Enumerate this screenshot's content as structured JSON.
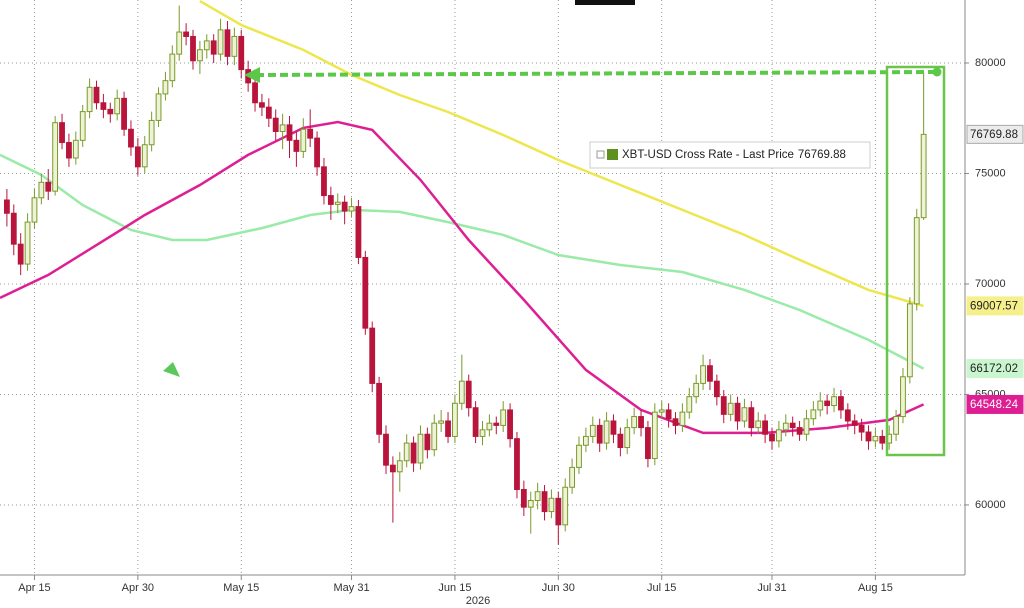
{
  "chart_data": {
    "type": "candlestick",
    "name": "XBT-USD Cross Rate - Last Price",
    "last_price": 76769.88,
    "x_year_label": "2026",
    "up_color": "#7a9a2a",
    "up_fill": "#eef3d6",
    "down_color": "#b8143c",
    "xlim": [
      "2026-04-10",
      "2026-08-28"
    ],
    "xticks": [
      {
        "value": "2026-04-15",
        "label": "Apr 15"
      },
      {
        "value": "2026-04-30",
        "label": "Apr 30"
      },
      {
        "value": "2026-05-15",
        "label": "May 15"
      },
      {
        "value": "2026-05-31",
        "label": "May 31"
      },
      {
        "value": "2026-06-15",
        "label": "Jun 15"
      },
      {
        "value": "2026-06-30",
        "label": "Jun 30"
      },
      {
        "value": "2026-07-15",
        "label": "Jul 15"
      },
      {
        "value": "2026-07-31",
        "label": "Jul 31"
      },
      {
        "value": "2026-08-15",
        "label": "Aug 15"
      }
    ],
    "ylim": [
      56830,
      82850
    ],
    "yticks": [
      60000,
      65000,
      70000,
      75000,
      80000
    ],
    "grid": true,
    "x": [
      "2026-04-11",
      "2026-04-12",
      "2026-04-13",
      "2026-04-14",
      "2026-04-15",
      "2026-04-16",
      "2026-04-17",
      "2026-04-18",
      "2026-04-19",
      "2026-04-20",
      "2026-04-21",
      "2026-04-22",
      "2026-04-23",
      "2026-04-24",
      "2026-04-25",
      "2026-04-26",
      "2026-04-27",
      "2026-04-28",
      "2026-04-29",
      "2026-04-30",
      "2026-05-01",
      "2026-05-02",
      "2026-05-03",
      "2026-05-04",
      "2026-05-05",
      "2026-05-06",
      "2026-05-07",
      "2026-05-08",
      "2026-05-09",
      "2026-05-10",
      "2026-05-11",
      "2026-05-12",
      "2026-05-13",
      "2026-05-14",
      "2026-05-15",
      "2026-05-16",
      "2026-05-17",
      "2026-05-18",
      "2026-05-19",
      "2026-05-20",
      "2026-05-21",
      "2026-05-22",
      "2026-05-23",
      "2026-05-24",
      "2026-05-25",
      "2026-05-26",
      "2026-05-27",
      "2026-05-28",
      "2026-05-29",
      "2026-05-30",
      "2026-05-31",
      "2026-06-01",
      "2026-06-02",
      "2026-06-03",
      "2026-06-04",
      "2026-06-05",
      "2026-06-06",
      "2026-06-07",
      "2026-06-08",
      "2026-06-09",
      "2026-06-10",
      "2026-06-11",
      "2026-06-12",
      "2026-06-13",
      "2026-06-14",
      "2026-06-15",
      "2026-06-16",
      "2026-06-17",
      "2026-06-18",
      "2026-06-19",
      "2026-06-20",
      "2026-06-21",
      "2026-06-22",
      "2026-06-23",
      "2026-06-24",
      "2026-06-25",
      "2026-06-26",
      "2026-06-27",
      "2026-06-28",
      "2026-06-29",
      "2026-06-30",
      "2026-07-01",
      "2026-07-02",
      "2026-07-03",
      "2026-07-04",
      "2026-07-05",
      "2026-07-06",
      "2026-07-07",
      "2026-07-08",
      "2026-07-09",
      "2026-07-10",
      "2026-07-11",
      "2026-07-12",
      "2026-07-13",
      "2026-07-14",
      "2026-07-15",
      "2026-07-16",
      "2026-07-17",
      "2026-07-18",
      "2026-07-19",
      "2026-07-20",
      "2026-07-21",
      "2026-07-22",
      "2026-07-23",
      "2026-07-24",
      "2026-07-25",
      "2026-07-26",
      "2026-07-27",
      "2026-07-28",
      "2026-07-29",
      "2026-07-30",
      "2026-07-31",
      "2026-08-01",
      "2026-08-02",
      "2026-08-03",
      "2026-08-04",
      "2026-08-05",
      "2026-08-06",
      "2026-08-07",
      "2026-08-08",
      "2026-08-09",
      "2026-08-10",
      "2026-08-11",
      "2026-08-12",
      "2026-08-13",
      "2026-08-14",
      "2026-08-15",
      "2026-08-16",
      "2026-08-17",
      "2026-08-18",
      "2026-08-19",
      "2026-08-20",
      "2026-08-21",
      "2026-08-22"
    ],
    "ohlc": [
      [
        73800,
        74300,
        72600,
        73200
      ],
      [
        73200,
        73600,
        71300,
        71800
      ],
      [
        71800,
        72300,
        70400,
        70900
      ],
      [
        70900,
        73200,
        70600,
        72800
      ],
      [
        72800,
        74300,
        72500,
        73900
      ],
      [
        73900,
        75000,
        73600,
        74600
      ],
      [
        74600,
        75200,
        73800,
        74200
      ],
      [
        74200,
        77600,
        74000,
        77300
      ],
      [
        77300,
        77700,
        76100,
        76400
      ],
      [
        76400,
        76800,
        75300,
        75700
      ],
      [
        75700,
        76900,
        75400,
        76500
      ],
      [
        76500,
        78100,
        76200,
        77800
      ],
      [
        77800,
        79300,
        77500,
        78900
      ],
      [
        78900,
        79200,
        77900,
        78200
      ],
      [
        78200,
        78600,
        77500,
        77900
      ],
      [
        77900,
        78200,
        77300,
        77700
      ],
      [
        77700,
        78800,
        77400,
        78400
      ],
      [
        78400,
        78700,
        76700,
        77000
      ],
      [
        77000,
        77400,
        75800,
        76200
      ],
      [
        76200,
        76600,
        74900,
        75300
      ],
      [
        75300,
        76700,
        75000,
        76300
      ],
      [
        76300,
        77800,
        76000,
        77400
      ],
      [
        77400,
        78900,
        77100,
        78600
      ],
      [
        78600,
        79600,
        78300,
        79200
      ],
      [
        79200,
        80800,
        78900,
        80400
      ],
      [
        80400,
        82600,
        80100,
        81400
      ],
      [
        81400,
        81800,
        80800,
        81200
      ],
      [
        81200,
        81500,
        79700,
        80100
      ],
      [
        80100,
        81000,
        79500,
        80600
      ],
      [
        80600,
        81300,
        80200,
        81000
      ],
      [
        81000,
        81300,
        80000,
        80400
      ],
      [
        80400,
        82000,
        80100,
        81500
      ],
      [
        81500,
        81900,
        79900,
        80300
      ],
      [
        80300,
        81600,
        79900,
        81200
      ],
      [
        81200,
        81500,
        79300,
        79700
      ],
      [
        79700,
        80100,
        78700,
        79100
      ],
      [
        79100,
        79500,
        77800,
        78200
      ],
      [
        78200,
        78600,
        77600,
        78000
      ],
      [
        78000,
        78400,
        77100,
        77500
      ],
      [
        77500,
        77900,
        76500,
        76900
      ],
      [
        76900,
        77700,
        76100,
        77200
      ],
      [
        77200,
        77600,
        75700,
        76500
      ],
      [
        76500,
        76900,
        75300,
        76000
      ],
      [
        76000,
        77500,
        75700,
        77000
      ],
      [
        77000,
        77900,
        76200,
        76600
      ],
      [
        76600,
        76900,
        74900,
        75300
      ],
      [
        75300,
        75700,
        73600,
        74000
      ],
      [
        74000,
        74400,
        72900,
        73600
      ],
      [
        73600,
        74100,
        73200,
        73700
      ],
      [
        73700,
        74000,
        72700,
        73300
      ],
      [
        73300,
        73900,
        73000,
        73500
      ],
      [
        73500,
        73800,
        70900,
        71200
      ],
      [
        71200,
        71500,
        67700,
        68000
      ],
      [
        68000,
        68300,
        65100,
        65500
      ],
      [
        65500,
        65800,
        62800,
        63200
      ],
      [
        63200,
        63600,
        61400,
        61800
      ],
      [
        61800,
        62200,
        59200,
        61500
      ],
      [
        61500,
        62400,
        60600,
        62000
      ],
      [
        62000,
        63200,
        61700,
        62800
      ],
      [
        62800,
        63100,
        61500,
        61900
      ],
      [
        61900,
        63600,
        61600,
        63200
      ],
      [
        63200,
        63500,
        62100,
        62500
      ],
      [
        62500,
        64100,
        62200,
        63700
      ],
      [
        63700,
        64300,
        63300,
        63800
      ],
      [
        63800,
        64200,
        62800,
        63100
      ],
      [
        63100,
        65000,
        62800,
        64600
      ],
      [
        64600,
        66800,
        64300,
        65600
      ],
      [
        65600,
        65900,
        64000,
        64400
      ],
      [
        64400,
        64700,
        62800,
        63100
      ],
      [
        63100,
        63800,
        62700,
        63400
      ],
      [
        63400,
        64100,
        63100,
        63700
      ],
      [
        63700,
        64000,
        63200,
        63600
      ],
      [
        63600,
        64700,
        63300,
        64300
      ],
      [
        64300,
        64600,
        62600,
        63000
      ],
      [
        63000,
        63300,
        60300,
        60700
      ],
      [
        60700,
        61100,
        59500,
        59900
      ],
      [
        59900,
        60600,
        58700,
        60200
      ],
      [
        60200,
        61000,
        59800,
        60600
      ],
      [
        60600,
        60900,
        59300,
        59700
      ],
      [
        59700,
        60700,
        59400,
        60300
      ],
      [
        60300,
        60600,
        58200,
        59100
      ],
      [
        59100,
        61200,
        58800,
        60800
      ],
      [
        60800,
        62100,
        60500,
        61700
      ],
      [
        61700,
        63100,
        61400,
        62700
      ],
      [
        62700,
        63500,
        62400,
        63100
      ],
      [
        63100,
        64000,
        62800,
        63600
      ],
      [
        63600,
        63900,
        62400,
        62800
      ],
      [
        62800,
        64200,
        62500,
        63800
      ],
      [
        63800,
        64100,
        62800,
        63200
      ],
      [
        63200,
        63500,
        62200,
        62600
      ],
      [
        62600,
        63900,
        62300,
        63500
      ],
      [
        63500,
        64400,
        63200,
        64000
      ],
      [
        64000,
        64300,
        63100,
        63500
      ],
      [
        63500,
        63800,
        61700,
        62100
      ],
      [
        62100,
        64600,
        61800,
        64200
      ],
      [
        64200,
        64700,
        63900,
        64300
      ],
      [
        64300,
        64600,
        63500,
        63900
      ],
      [
        63900,
        64200,
        63200,
        63600
      ],
      [
        63600,
        64600,
        63300,
        64200
      ],
      [
        64200,
        65300,
        63900,
        64900
      ],
      [
        64900,
        65900,
        64600,
        65500
      ],
      [
        65500,
        66800,
        65200,
        66300
      ],
      [
        66300,
        66600,
        65200,
        65600
      ],
      [
        65600,
        65900,
        64500,
        64900
      ],
      [
        64900,
        65200,
        63700,
        64100
      ],
      [
        64100,
        65000,
        63800,
        64600
      ],
      [
        64600,
        64900,
        63400,
        63800
      ],
      [
        63800,
        64800,
        63500,
        64400
      ],
      [
        64400,
        64700,
        63100,
        63500
      ],
      [
        63500,
        64200,
        63200,
        63800
      ],
      [
        63800,
        64100,
        62800,
        63200
      ],
      [
        63200,
        63500,
        62500,
        62900
      ],
      [
        62900,
        63800,
        62600,
        63400
      ],
      [
        63400,
        64100,
        63100,
        63700
      ],
      [
        63700,
        64000,
        63100,
        63500
      ],
      [
        63500,
        63800,
        62900,
        63200
      ],
      [
        63200,
        64300,
        62900,
        63900
      ],
      [
        63900,
        64700,
        63600,
        64300
      ],
      [
        64300,
        65100,
        64000,
        64700
      ],
      [
        64700,
        65000,
        64100,
        64500
      ],
      [
        64500,
        65300,
        64200,
        64900
      ],
      [
        64900,
        65200,
        63900,
        64300
      ],
      [
        64300,
        64600,
        63400,
        63800
      ],
      [
        63800,
        64100,
        63200,
        63600
      ],
      [
        63600,
        63900,
        62900,
        63300
      ],
      [
        63300,
        63600,
        62500,
        62900
      ],
      [
        62900,
        63500,
        62600,
        63100
      ],
      [
        63100,
        63400,
        62500,
        62800
      ],
      [
        62800,
        63600,
        62500,
        63200
      ],
      [
        63200,
        64300,
        62900,
        64000
      ],
      [
        64000,
        66200,
        63700,
        65800
      ],
      [
        65800,
        69400,
        65500,
        69100
      ],
      [
        69100,
        73400,
        68800,
        73000
      ],
      [
        73000,
        79600,
        72900,
        76769.88
      ]
    ],
    "series": [
      {
        "color": "#ede64c",
        "label_fill": "#f6f08c",
        "label_text": "#222222",
        "x": [
          "2026-05-09",
          "2026-05-15",
          "2026-05-24",
          "2026-05-31",
          "2026-06-07",
          "2026-06-14",
          "2026-06-22",
          "2026-06-30",
          "2026-07-09",
          "2026-07-18",
          "2026-07-27",
          "2026-08-04",
          "2026-08-14",
          "2026-08-22"
        ],
        "values": [
          82800,
          81720,
          80590,
          79460,
          78550,
          77780,
          76740,
          75610,
          74480,
          73350,
          72220,
          71090,
          69730,
          69007.57
        ]
      },
      {
        "color": "#9aeaa8",
        "label_fill": "#c9f5cf",
        "label_text": "#222222",
        "x": [
          "2026-04-10",
          "2026-04-16",
          "2026-04-22",
          "2026-04-29",
          "2026-05-05",
          "2026-05-10",
          "2026-05-18",
          "2026-05-25",
          "2026-05-31",
          "2026-06-07",
          "2026-06-14",
          "2026-06-22",
          "2026-06-30",
          "2026-07-09",
          "2026-07-18",
          "2026-07-27",
          "2026-08-04",
          "2026-08-14",
          "2026-08-22"
        ],
        "values": [
          75840,
          74930,
          73570,
          72440,
          71990,
          71990,
          72530,
          73120,
          73350,
          73260,
          72800,
          72220,
          71310,
          70860,
          70540,
          69730,
          68820,
          67470,
          66172.02
        ]
      },
      {
        "color": "#de1f93",
        "label_fill": "#de1f93",
        "label_text": "#ffffff",
        "x": [
          "2026-04-10",
          "2026-04-17",
          "2026-04-24",
          "2026-05-01",
          "2026-05-09",
          "2026-05-16",
          "2026-05-24",
          "2026-05-29",
          "2026-06-03",
          "2026-06-10",
          "2026-06-17",
          "2026-06-25",
          "2026-07-04",
          "2026-07-12",
          "2026-07-21",
          "2026-07-30",
          "2026-08-08",
          "2026-08-17",
          "2026-08-22"
        ],
        "values": [
          69370,
          70410,
          71760,
          73120,
          74480,
          75840,
          77060,
          77330,
          76970,
          74710,
          71990,
          69280,
          66110,
          64300,
          63260,
          63260,
          63480,
          63850,
          64548.24
        ]
      }
    ]
  }
}
